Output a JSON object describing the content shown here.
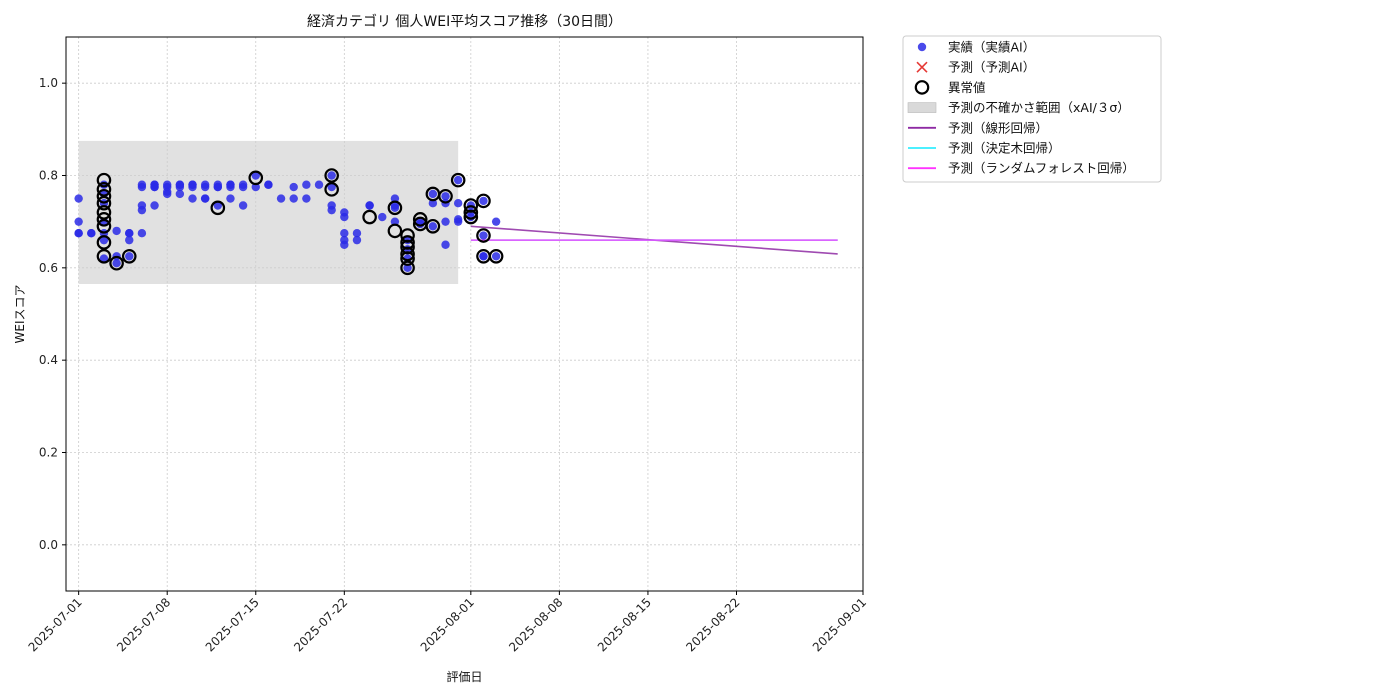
{
  "chart_data": {
    "type": "scatter",
    "title": "経済カテゴリ 個人WEI平均スコア推移（30日間）",
    "xlabel": "評価日",
    "ylabel": "WEIスコア",
    "ylim": [
      -0.1,
      1.1
    ],
    "yticks": [
      0.0,
      0.2,
      0.4,
      0.6,
      0.8,
      1.0
    ],
    "ytick_labels": [
      "0.0",
      "0.2",
      "0.4",
      "0.6",
      "0.8",
      "1.0"
    ],
    "xlim": [
      "2025-06-30",
      "2025-09-01"
    ],
    "xticks": [
      "2025-07-01",
      "2025-07-08",
      "2025-07-15",
      "2025-07-22",
      "2025-08-01",
      "2025-08-08",
      "2025-08-15",
      "2025-08-22",
      "2025-09-01"
    ],
    "grid": true,
    "legend_position": "outside-top-right",
    "colors": {
      "actual": "#2a2ae6",
      "predicted": "#e53935",
      "anomaly": "#000000",
      "band": "#d9d9d9",
      "linear": "#8e2aa3",
      "tree": "#33eeff",
      "forest": "#ff33ff",
      "grid": "#cccccc"
    },
    "legend": [
      {
        "key": "actual",
        "label": "実績（実績AI）",
        "marker": "dot"
      },
      {
        "key": "predicted",
        "label": "予測（予測AI）",
        "marker": "cross"
      },
      {
        "key": "anomaly",
        "label": "異常値",
        "marker": "ring"
      },
      {
        "key": "band",
        "label": "予測の不確かさ範囲（xAI/３σ）",
        "marker": "band"
      },
      {
        "key": "linear",
        "label": "予測（線形回帰）",
        "marker": "line"
      },
      {
        "key": "tree",
        "label": "予測（決定木回帰）",
        "marker": "line"
      },
      {
        "key": "forest",
        "label": "予測（ランダムフォレスト回帰）",
        "marker": "line"
      }
    ],
    "uncertainty_band": {
      "x_start": "2025-07-01",
      "x_end": "2025-07-31",
      "y_low": 0.565,
      "y_high": 0.875
    },
    "actual": [
      [
        "2025-07-01",
        0.675
      ],
      [
        "2025-07-01",
        0.75
      ],
      [
        "2025-07-01",
        0.675
      ],
      [
        "2025-07-01",
        0.7
      ],
      [
        "2025-07-02",
        0.675
      ],
      [
        "2025-07-02",
        0.675
      ],
      [
        "2025-07-03",
        0.675
      ],
      [
        "2025-07-03",
        0.62
      ],
      [
        "2025-07-03",
        0.66
      ],
      [
        "2025-07-03",
        0.7
      ],
      [
        "2025-07-03",
        0.74
      ],
      [
        "2025-07-03",
        0.76
      ],
      [
        "2025-07-03",
        0.78
      ],
      [
        "2025-07-04",
        0.68
      ],
      [
        "2025-07-04",
        0.61
      ],
      [
        "2025-07-04",
        0.625
      ],
      [
        "2025-07-05",
        0.625
      ],
      [
        "2025-07-05",
        0.66
      ],
      [
        "2025-07-05",
        0.675
      ],
      [
        "2025-07-05",
        0.675
      ],
      [
        "2025-07-06",
        0.675
      ],
      [
        "2025-07-06",
        0.725
      ],
      [
        "2025-07-06",
        0.735
      ],
      [
        "2025-07-06",
        0.775
      ],
      [
        "2025-07-06",
        0.78
      ],
      [
        "2025-07-07",
        0.735
      ],
      [
        "2025-07-07",
        0.775
      ],
      [
        "2025-07-07",
        0.78
      ],
      [
        "2025-07-07",
        0.775
      ],
      [
        "2025-07-07",
        0.78
      ],
      [
        "2025-07-08",
        0.76
      ],
      [
        "2025-07-08",
        0.765
      ],
      [
        "2025-07-08",
        0.775
      ],
      [
        "2025-07-08",
        0.78
      ],
      [
        "2025-07-09",
        0.78
      ],
      [
        "2025-07-09",
        0.775
      ],
      [
        "2025-07-09",
        0.78
      ],
      [
        "2025-07-09",
        0.76
      ],
      [
        "2025-07-10",
        0.75
      ],
      [
        "2025-07-10",
        0.775
      ],
      [
        "2025-07-10",
        0.78
      ],
      [
        "2025-07-10",
        0.78
      ],
      [
        "2025-07-11",
        0.75
      ],
      [
        "2025-07-11",
        0.775
      ],
      [
        "2025-07-11",
        0.78
      ],
      [
        "2025-07-11",
        0.75
      ],
      [
        "2025-07-12",
        0.735
      ],
      [
        "2025-07-12",
        0.775
      ],
      [
        "2025-07-12",
        0.78
      ],
      [
        "2025-07-12",
        0.775
      ],
      [
        "2025-07-13",
        0.78
      ],
      [
        "2025-07-13",
        0.775
      ],
      [
        "2025-07-13",
        0.78
      ],
      [
        "2025-07-13",
        0.75
      ],
      [
        "2025-07-14",
        0.735
      ],
      [
        "2025-07-14",
        0.775
      ],
      [
        "2025-07-14",
        0.78
      ],
      [
        "2025-07-15",
        0.775
      ],
      [
        "2025-07-15",
        0.8
      ],
      [
        "2025-07-16",
        0.78
      ],
      [
        "2025-07-16",
        0.78
      ],
      [
        "2025-07-17",
        0.75
      ],
      [
        "2025-07-18",
        0.75
      ],
      [
        "2025-07-18",
        0.775
      ],
      [
        "2025-07-19",
        0.75
      ],
      [
        "2025-07-19",
        0.78
      ],
      [
        "2025-07-20",
        0.78
      ],
      [
        "2025-07-21",
        0.775
      ],
      [
        "2025-07-21",
        0.8
      ],
      [
        "2025-07-21",
        0.735
      ],
      [
        "2025-07-21",
        0.725
      ],
      [
        "2025-07-22",
        0.72
      ],
      [
        "2025-07-22",
        0.71
      ],
      [
        "2025-07-22",
        0.675
      ],
      [
        "2025-07-22",
        0.66
      ],
      [
        "2025-07-22",
        0.65
      ],
      [
        "2025-07-23",
        0.675
      ],
      [
        "2025-07-23",
        0.66
      ],
      [
        "2025-07-24",
        0.735
      ],
      [
        "2025-07-24",
        0.735
      ],
      [
        "2025-07-25",
        0.71
      ],
      [
        "2025-07-26",
        0.75
      ],
      [
        "2025-07-26",
        0.735
      ],
      [
        "2025-07-26",
        0.73
      ],
      [
        "2025-07-26",
        0.7
      ],
      [
        "2025-07-27",
        0.66
      ],
      [
        "2025-07-27",
        0.64
      ],
      [
        "2025-07-27",
        0.62
      ],
      [
        "2025-07-27",
        0.6
      ],
      [
        "2025-07-28",
        0.7
      ],
      [
        "2025-07-28",
        0.695
      ],
      [
        "2025-07-29",
        0.76
      ],
      [
        "2025-07-29",
        0.74
      ],
      [
        "2025-07-29",
        0.69
      ],
      [
        "2025-07-30",
        0.65
      ],
      [
        "2025-07-30",
        0.7
      ],
      [
        "2025-07-30",
        0.74
      ],
      [
        "2025-07-30",
        0.755
      ],
      [
        "2025-07-31",
        0.7
      ],
      [
        "2025-07-31",
        0.705
      ],
      [
        "2025-07-31",
        0.74
      ],
      [
        "2025-07-31",
        0.79
      ],
      [
        "2025-08-01",
        0.71
      ],
      [
        "2025-08-01",
        0.72
      ],
      [
        "2025-08-01",
        0.735
      ],
      [
        "2025-08-02",
        0.745
      ],
      [
        "2025-08-02",
        0.67
      ],
      [
        "2025-08-02",
        0.625
      ],
      [
        "2025-08-02",
        0.625
      ],
      [
        "2025-08-03",
        0.625
      ],
      [
        "2025-08-03",
        0.7
      ]
    ],
    "anomalies": [
      [
        "2025-07-03",
        0.625
      ],
      [
        "2025-07-03",
        0.655
      ],
      [
        "2025-07-03",
        0.69
      ],
      [
        "2025-07-03",
        0.705
      ],
      [
        "2025-07-03",
        0.72
      ],
      [
        "2025-07-03",
        0.74
      ],
      [
        "2025-07-03",
        0.755
      ],
      [
        "2025-07-03",
        0.77
      ],
      [
        "2025-07-03",
        0.79
      ],
      [
        "2025-07-04",
        0.61
      ],
      [
        "2025-07-05",
        0.625
      ],
      [
        "2025-07-12",
        0.73
      ],
      [
        "2025-07-15",
        0.795
      ],
      [
        "2025-07-21",
        0.8
      ],
      [
        "2025-07-21",
        0.77
      ],
      [
        "2025-07-24",
        0.71
      ],
      [
        "2025-07-26",
        0.73
      ],
      [
        "2025-07-26",
        0.68
      ],
      [
        "2025-07-27",
        0.6
      ],
      [
        "2025-07-27",
        0.62
      ],
      [
        "2025-07-27",
        0.63
      ],
      [
        "2025-07-27",
        0.645
      ],
      [
        "2025-07-27",
        0.655
      ],
      [
        "2025-07-27",
        0.67
      ],
      [
        "2025-07-28",
        0.695
      ],
      [
        "2025-07-28",
        0.705
      ],
      [
        "2025-07-29",
        0.69
      ],
      [
        "2025-07-29",
        0.76
      ],
      [
        "2025-07-30",
        0.755
      ],
      [
        "2025-07-31",
        0.79
      ],
      [
        "2025-08-01",
        0.72
      ],
      [
        "2025-08-01",
        0.735
      ],
      [
        "2025-08-01",
        0.71
      ],
      [
        "2025-08-02",
        0.745
      ],
      [
        "2025-08-02",
        0.67
      ],
      [
        "2025-08-02",
        0.625
      ],
      [
        "2025-08-03",
        0.625
      ]
    ],
    "linear_regression": [
      [
        "2025-08-01",
        0.69
      ],
      [
        "2025-08-30",
        0.63
      ]
    ],
    "tree_regression": [
      [
        "2025-08-01",
        0.66
      ],
      [
        "2025-08-30",
        0.66
      ]
    ],
    "forest_regression": [
      [
        "2025-08-01",
        0.66
      ],
      [
        "2025-08-30",
        0.66
      ]
    ]
  }
}
